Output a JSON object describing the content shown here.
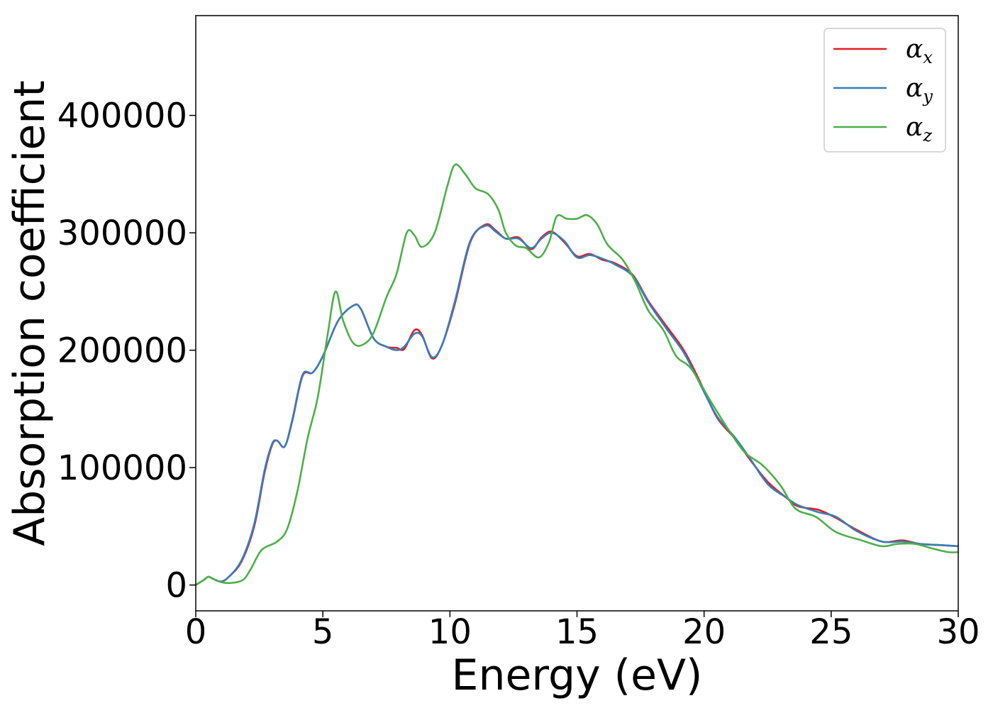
{
  "chart_data": {
    "type": "line",
    "title": "",
    "xlabel": "Energy (eV)",
    "ylabel": "Absorption coefficient",
    "xlim": [
      0,
      30
    ],
    "ylim": [
      -22000,
      485000
    ],
    "xticks": [
      0,
      5,
      10,
      15,
      20,
      25,
      30
    ],
    "yticks": [
      0,
      100000,
      200000,
      300000,
      400000
    ],
    "grid": false,
    "legend_position": "top-right",
    "series": [
      {
        "name": "α_x",
        "legend_base": "α",
        "legend_sub": "x",
        "color": "#e41a1c",
        "points": [
          [
            0,
            0
          ],
          [
            0.3,
            4000
          ],
          [
            0.5,
            7000
          ],
          [
            0.7,
            5000
          ],
          [
            1.0,
            3000
          ],
          [
            1.3,
            7000
          ],
          [
            1.8,
            20000
          ],
          [
            2.3,
            50000
          ],
          [
            2.7,
            95000
          ],
          [
            3.0,
            119000
          ],
          [
            3.2,
            123000
          ],
          [
            3.5,
            118000
          ],
          [
            3.8,
            140000
          ],
          [
            4.2,
            178000
          ],
          [
            4.6,
            181000
          ],
          [
            5.0,
            195000
          ],
          [
            5.6,
            225000
          ],
          [
            6.2,
            238000
          ],
          [
            6.5,
            235000
          ],
          [
            7.0,
            210000
          ],
          [
            7.5,
            203000
          ],
          [
            7.9,
            202000
          ],
          [
            8.2,
            201000
          ],
          [
            8.6,
            217000
          ],
          [
            8.9,
            213000
          ],
          [
            9.3,
            193000
          ],
          [
            9.7,
            205000
          ],
          [
            10.2,
            240000
          ],
          [
            10.8,
            292000
          ],
          [
            11.4,
            307000
          ],
          [
            11.8,
            302000
          ],
          [
            12.2,
            295000
          ],
          [
            12.7,
            296000
          ],
          [
            13.2,
            286000
          ],
          [
            13.6,
            296000
          ],
          [
            14.0,
            301000
          ],
          [
            14.5,
            292000
          ],
          [
            15.0,
            280000
          ],
          [
            15.5,
            282000
          ],
          [
            16.0,
            277000
          ],
          [
            16.5,
            274000
          ],
          [
            17.2,
            264000
          ],
          [
            17.8,
            242000
          ],
          [
            18.5,
            221000
          ],
          [
            19.2,
            200000
          ],
          [
            19.8,
            175000
          ],
          [
            20.5,
            143000
          ],
          [
            21.2,
            125000
          ],
          [
            21.8,
            107000
          ],
          [
            22.5,
            88000
          ],
          [
            23.2,
            75000
          ],
          [
            23.7,
            67000
          ],
          [
            24.5,
            64000
          ],
          [
            25.2,
            57000
          ],
          [
            26.0,
            47000
          ],
          [
            27.0,
            37000
          ],
          [
            27.8,
            38000
          ],
          [
            28.5,
            35000
          ],
          [
            29.3,
            34000
          ],
          [
            30.0,
            33000
          ]
        ]
      },
      {
        "name": "α_y",
        "legend_base": "α",
        "legend_sub": "y",
        "color": "#377eb8",
        "points": [
          [
            0,
            0
          ],
          [
            0.3,
            4000
          ],
          [
            0.5,
            7000
          ],
          [
            0.7,
            5000
          ],
          [
            1.0,
            3000
          ],
          [
            1.3,
            7000
          ],
          [
            1.8,
            21000
          ],
          [
            2.3,
            52000
          ],
          [
            2.7,
            97000
          ],
          [
            3.0,
            120000
          ],
          [
            3.2,
            123000
          ],
          [
            3.5,
            118000
          ],
          [
            3.8,
            141000
          ],
          [
            4.2,
            179000
          ],
          [
            4.6,
            181000
          ],
          [
            5.0,
            195000
          ],
          [
            5.6,
            225000
          ],
          [
            6.2,
            238000
          ],
          [
            6.5,
            235000
          ],
          [
            7.0,
            210000
          ],
          [
            7.5,
            203000
          ],
          [
            7.9,
            200000
          ],
          [
            8.2,
            203000
          ],
          [
            8.6,
            214000
          ],
          [
            8.9,
            212000
          ],
          [
            9.3,
            194000
          ],
          [
            9.7,
            205000
          ],
          [
            10.2,
            242000
          ],
          [
            10.8,
            293000
          ],
          [
            11.4,
            306000
          ],
          [
            11.8,
            301000
          ],
          [
            12.2,
            295000
          ],
          [
            12.7,
            295000
          ],
          [
            13.2,
            287000
          ],
          [
            13.6,
            295000
          ],
          [
            14.0,
            300000
          ],
          [
            14.5,
            293000
          ],
          [
            15.0,
            279000
          ],
          [
            15.5,
            281000
          ],
          [
            16.0,
            278000
          ],
          [
            16.5,
            273000
          ],
          [
            17.2,
            263000
          ],
          [
            17.8,
            241000
          ],
          [
            18.5,
            219000
          ],
          [
            19.2,
            198000
          ],
          [
            19.8,
            173000
          ],
          [
            20.5,
            144000
          ],
          [
            21.2,
            126000
          ],
          [
            21.8,
            108000
          ],
          [
            22.5,
            86000
          ],
          [
            23.2,
            75000
          ],
          [
            23.7,
            68000
          ],
          [
            24.5,
            62000
          ],
          [
            25.2,
            58000
          ],
          [
            26.0,
            46000
          ],
          [
            27.0,
            37000
          ],
          [
            27.8,
            37000
          ],
          [
            28.5,
            35000
          ],
          [
            29.3,
            34000
          ],
          [
            30.0,
            33000
          ]
        ]
      },
      {
        "name": "α_z",
        "legend_base": "α",
        "legend_sub": "z",
        "color": "#4daf4a",
        "points": [
          [
            0,
            0
          ],
          [
            0.3,
            4000
          ],
          [
            0.5,
            7000
          ],
          [
            0.8,
            4000
          ],
          [
            1.1,
            2000
          ],
          [
            1.5,
            2000
          ],
          [
            1.9,
            5000
          ],
          [
            2.2,
            15000
          ],
          [
            2.6,
            30000
          ],
          [
            3.2,
            37000
          ],
          [
            3.6,
            48000
          ],
          [
            4.0,
            80000
          ],
          [
            4.4,
            125000
          ],
          [
            4.8,
            160000
          ],
          [
            5.2,
            215000
          ],
          [
            5.5,
            250000
          ],
          [
            5.8,
            225000
          ],
          [
            6.2,
            206000
          ],
          [
            6.6,
            205000
          ],
          [
            7.0,
            215000
          ],
          [
            7.5,
            245000
          ],
          [
            7.9,
            265000
          ],
          [
            8.3,
            300000
          ],
          [
            8.6,
            298000
          ],
          [
            8.9,
            288000
          ],
          [
            9.4,
            300000
          ],
          [
            9.9,
            340000
          ],
          [
            10.2,
            358000
          ],
          [
            10.6,
            350000
          ],
          [
            11.0,
            338000
          ],
          [
            11.5,
            333000
          ],
          [
            11.9,
            320000
          ],
          [
            12.2,
            300000
          ],
          [
            12.6,
            289000
          ],
          [
            13.0,
            287000
          ],
          [
            13.5,
            279000
          ],
          [
            13.9,
            292000
          ],
          [
            14.2,
            314000
          ],
          [
            14.6,
            312000
          ],
          [
            15.0,
            312000
          ],
          [
            15.4,
            315000
          ],
          [
            15.8,
            307000
          ],
          [
            16.2,
            290000
          ],
          [
            16.8,
            277000
          ],
          [
            17.3,
            258000
          ],
          [
            17.8,
            234000
          ],
          [
            18.4,
            217000
          ],
          [
            18.9,
            195000
          ],
          [
            19.5,
            184000
          ],
          [
            20.3,
            155000
          ],
          [
            21.0,
            131000
          ],
          [
            21.6,
            113000
          ],
          [
            22.3,
            102000
          ],
          [
            23.0,
            85000
          ],
          [
            23.6,
            65000
          ],
          [
            24.4,
            58000
          ],
          [
            25.2,
            45000
          ],
          [
            26.2,
            38000
          ],
          [
            27.0,
            33000
          ],
          [
            27.6,
            35000
          ],
          [
            28.3,
            35000
          ],
          [
            29.0,
            31000
          ],
          [
            29.6,
            28000
          ],
          [
            30.0,
            28000
          ]
        ]
      }
    ]
  }
}
